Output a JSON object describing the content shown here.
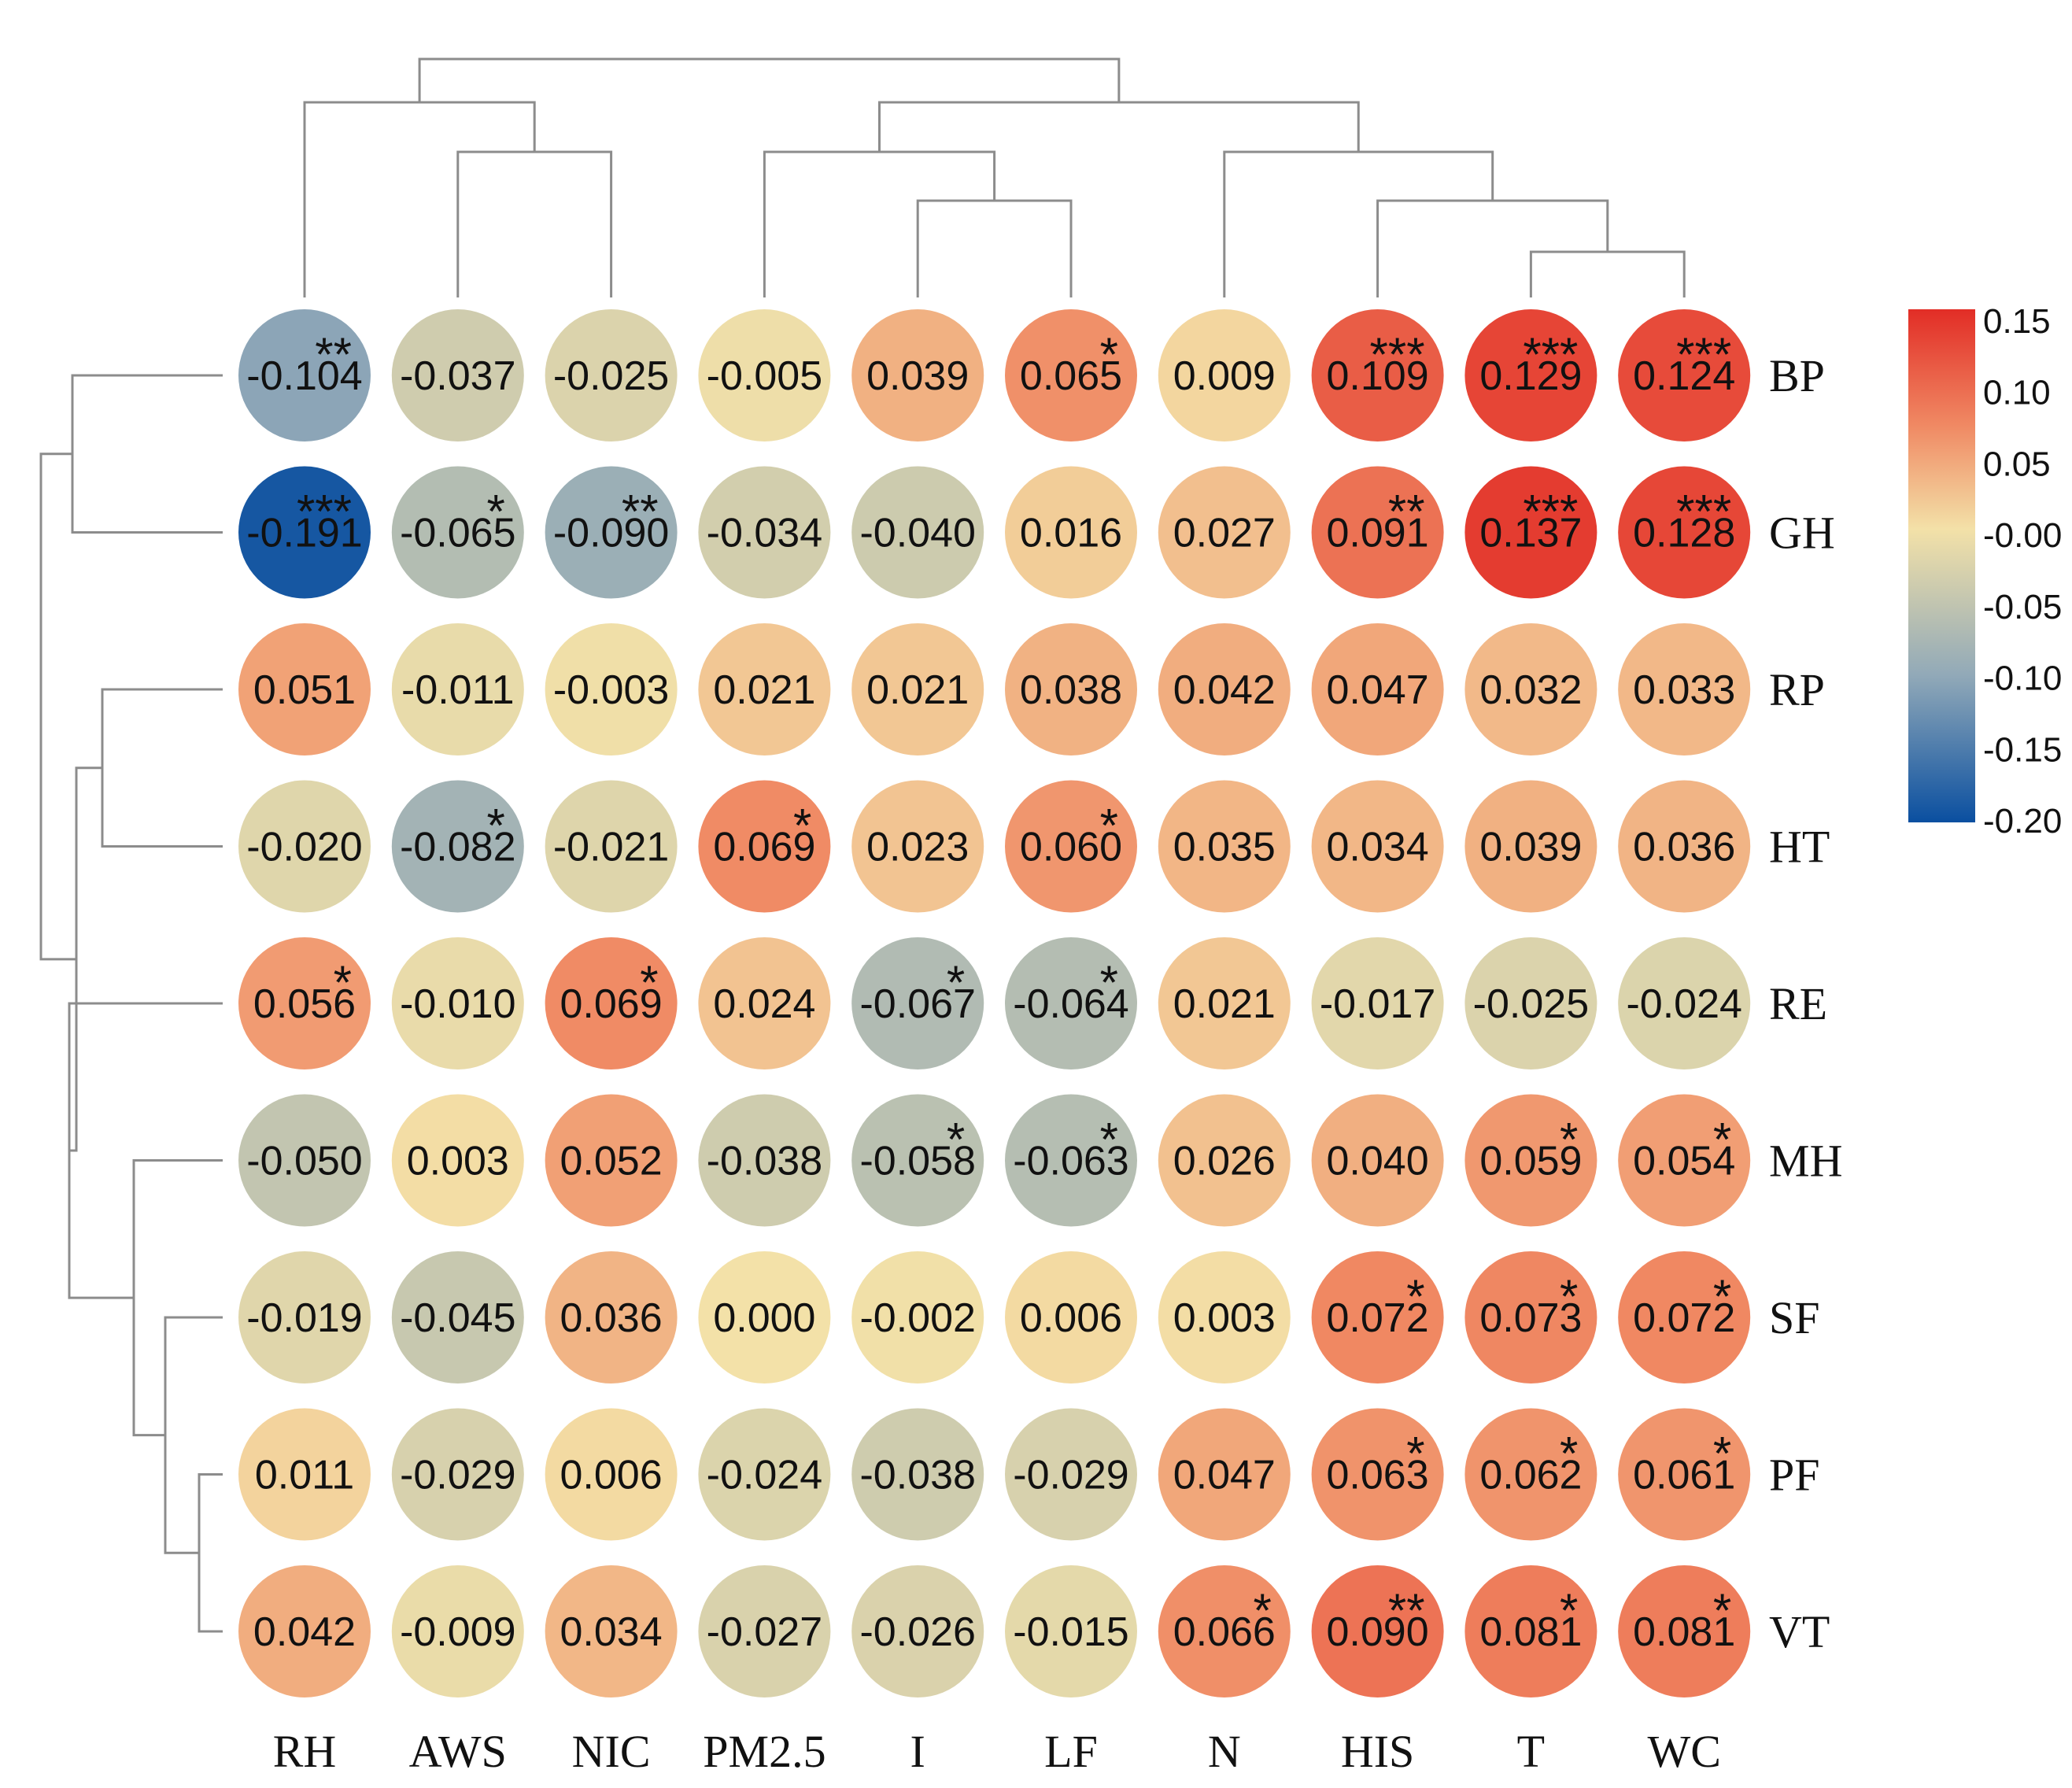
{
  "chart_data": {
    "type": "heatmap",
    "title": "",
    "columns": [
      "RH",
      "AWS",
      "NIC",
      "PM2.5",
      "I",
      "LF",
      "N",
      "HIS",
      "T",
      "WC"
    ],
    "rows": [
      "BP",
      "GH",
      "RP",
      "HT",
      "RE",
      "MH",
      "SF",
      "PF",
      "VT"
    ],
    "values": [
      [
        "-0.104",
        "-0.037",
        "-0.025",
        "-0.005",
        "0.039",
        "0.065",
        "0.009",
        "0.109",
        "0.129",
        "0.124"
      ],
      [
        "-0.191",
        "-0.065",
        "-0.090",
        "-0.034",
        "-0.040",
        "0.016",
        "0.027",
        "0.091",
        "0.137",
        "0.128"
      ],
      [
        "0.051",
        "-0.011",
        "-0.003",
        "0.021",
        "0.021",
        "0.038",
        "0.042",
        "0.047",
        "0.032",
        "0.033"
      ],
      [
        "-0.020",
        "-0.082",
        "-0.021",
        "0.069",
        "0.023",
        "0.060",
        "0.035",
        "0.034",
        "0.039",
        "0.036"
      ],
      [
        "0.056",
        "-0.010",
        "0.069",
        "0.024",
        "-0.067",
        "-0.064",
        "0.021",
        "-0.017",
        "-0.025",
        "-0.024"
      ],
      [
        "-0.050",
        "0.003",
        "0.052",
        "-0.038",
        "-0.058",
        "-0.063",
        "0.026",
        "0.040",
        "0.059",
        "0.054"
      ],
      [
        "-0.019",
        "-0.045",
        "0.036",
        "0.000",
        "-0.002",
        "0.006",
        "0.003",
        "0.072",
        "0.073",
        "0.072"
      ],
      [
        "0.011",
        "-0.029",
        "0.006",
        "-0.024",
        "-0.038",
        "-0.029",
        "0.047",
        "0.063",
        "0.062",
        "0.061"
      ],
      [
        "0.042",
        "-0.009",
        "0.034",
        "-0.027",
        "-0.026",
        "-0.015",
        "0.066",
        "0.090",
        "0.081",
        "0.081"
      ]
    ],
    "significance": [
      [
        "**",
        "",
        "",
        "",
        "",
        "*",
        "",
        "***",
        "***",
        "***"
      ],
      [
        "***",
        "*",
        "**",
        "",
        "",
        "",
        "",
        "**",
        "***",
        "***"
      ],
      [
        "",
        "",
        "",
        "",
        "",
        "",
        "",
        "",
        "",
        ""
      ],
      [
        "",
        "*",
        "",
        "*",
        "",
        "*",
        "",
        "",
        "",
        ""
      ],
      [
        "*",
        "",
        "*",
        "",
        "*",
        "*",
        "",
        "",
        "",
        ""
      ],
      [
        "",
        "",
        "",
        "",
        "*",
        "*",
        "",
        "",
        "*",
        "*"
      ],
      [
        "",
        "",
        "",
        "",
        "",
        "",
        "",
        "*",
        "*",
        "*"
      ],
      [
        "",
        "",
        "",
        "",
        "",
        "",
        "",
        "*",
        "*",
        "*"
      ],
      [
        "",
        "",
        "",
        "",
        "",
        "",
        "*",
        "**",
        "*",
        "*"
      ]
    ],
    "colorbar": {
      "min": -0.2,
      "max": 0.15,
      "ticks": [
        "0.15",
        "0.10",
        "0.05",
        "-0.00",
        "-0.05",
        "-0.10",
        "-0.15",
        "-0.20"
      ],
      "colors": [
        "#e22d26",
        "#f08a64",
        "#f3e1a8",
        "#91a9b8",
        "#0a4fa0"
      ]
    },
    "column_dendrogram": {
      "description": "hierarchical clustering of columns",
      "merges": [
        [
          8,
          9
        ],
        [
          7,
          8
        ],
        [
          6,
          7
        ],
        [
          4,
          5
        ],
        [
          3,
          4
        ],
        [
          1,
          2
        ],
        [
          0,
          1
        ],
        [
          3,
          6
        ],
        [
          0,
          3
        ]
      ]
    },
    "row_dendrogram": {
      "description": "hierarchical clustering of rows",
      "merges": [
        [
          0,
          1
        ],
        [
          7,
          8
        ],
        [
          6,
          7
        ],
        [
          5,
          6
        ],
        [
          4,
          5
        ],
        [
          2,
          3
        ],
        [
          2,
          4
        ],
        [
          0,
          2
        ]
      ]
    }
  }
}
